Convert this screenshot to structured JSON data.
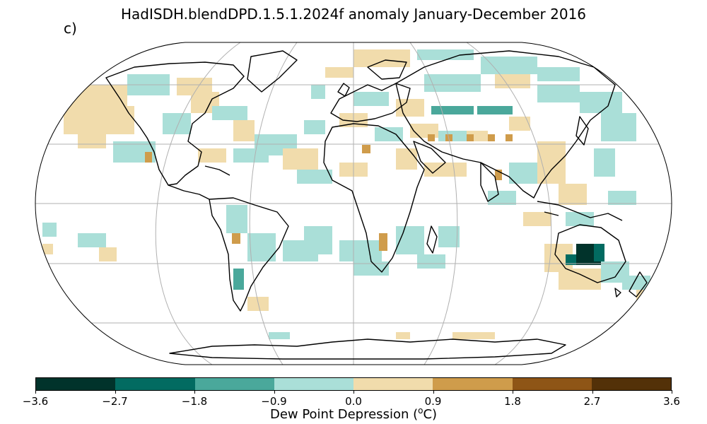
{
  "title": "HadISDH.blendDPD.1.5.1.2024f anomaly January-December 2016",
  "panel_label": "c)",
  "colorbar": {
    "label_prefix": "Dew Point Depression (",
    "label_sup": "o",
    "label_suffix": "C)",
    "ticks": [
      "−3.6",
      "−2.7",
      "−1.8",
      "−0.9",
      "0.0",
      "0.9",
      "1.8",
      "2.7",
      "3.6"
    ],
    "colors": [
      "#01332b",
      "#026b61",
      "#4aa89b",
      "#aadfd8",
      "#f1dcac",
      "#cf9c4b",
      "#8e5516",
      "#533108"
    ]
  },
  "map": {
    "projection": "Robinson",
    "graticule": true,
    "land_color": "#ffffff",
    "outline_color": "#000000"
  }
}
